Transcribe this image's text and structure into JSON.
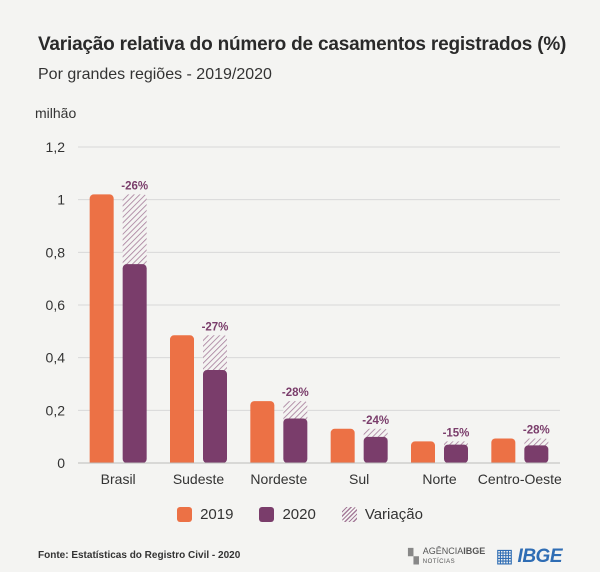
{
  "title": "Variação relativa do número de casamentos registrados (%)",
  "subtitle": "Por grandes regiões - 2019/2020",
  "footer": "Fonte: Estatísticas do Registro Civil - 2020",
  "brand": {
    "agency_name_part1": "AGÊNCIA",
    "agency_name_part2": "IBGE",
    "agency_sub": "NOTÍCIAS",
    "logo": "IBGE"
  },
  "colors": {
    "y2019": "#ec7145",
    "y2020": "#7a3d6b",
    "variation_hatch": "#a57c9a",
    "label": "#7a3d6b",
    "grid": "#d8d8d8"
  },
  "chart_data": {
    "type": "bar",
    "ylabel": "milhão",
    "ylim": [
      0,
      1.2
    ],
    "yticks": [
      "0",
      "0,2",
      "0,4",
      "0,6",
      "0,8",
      "1",
      "1,2"
    ],
    "grid": true,
    "legend_position": "bottom",
    "categories": [
      "Brasil",
      "Sudeste",
      "Nordeste",
      "Sul",
      "Norte",
      "Centro-Oeste"
    ],
    "series": [
      {
        "name": "2019",
        "values": [
          1.02,
          0.485,
          0.235,
          0.13,
          0.082,
          0.093
        ]
      },
      {
        "name": "2020",
        "values": [
          0.755,
          0.353,
          0.169,
          0.099,
          0.07,
          0.067
        ]
      },
      {
        "name": "Variação",
        "values": [
          1.02,
          0.485,
          0.235,
          0.13,
          0.082,
          0.093
        ]
      }
    ],
    "annotations": [
      "-26%",
      "-27%",
      "-28%",
      "-24%",
      "-15%",
      "-28%"
    ]
  }
}
